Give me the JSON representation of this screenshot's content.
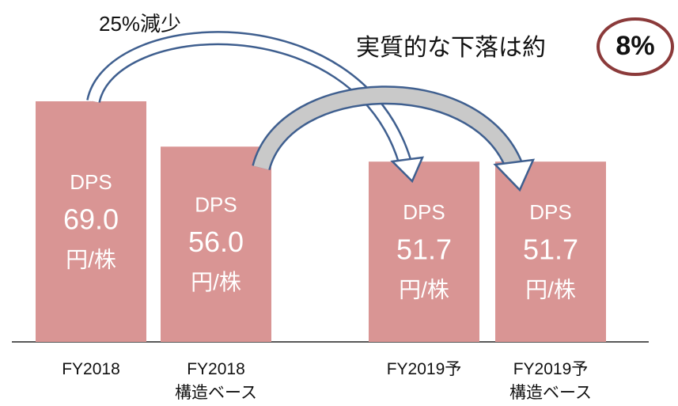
{
  "chart_data": {
    "type": "bar",
    "categories": [
      "FY2018",
      "FY2018\n構造ベース",
      "FY2019予",
      "FY2019予\n構造ベース"
    ],
    "values": [
      69,
      56,
      51.7,
      51.7
    ],
    "value_labels": [
      "69.0",
      "56.0",
      "51.7",
      "51.7"
    ],
    "bar_prefix": "DPS",
    "bar_unit": "円/株",
    "color": "#d99594",
    "annotations": [
      "25%減少",
      "実質的な下落は約",
      "8%"
    ]
  }
}
